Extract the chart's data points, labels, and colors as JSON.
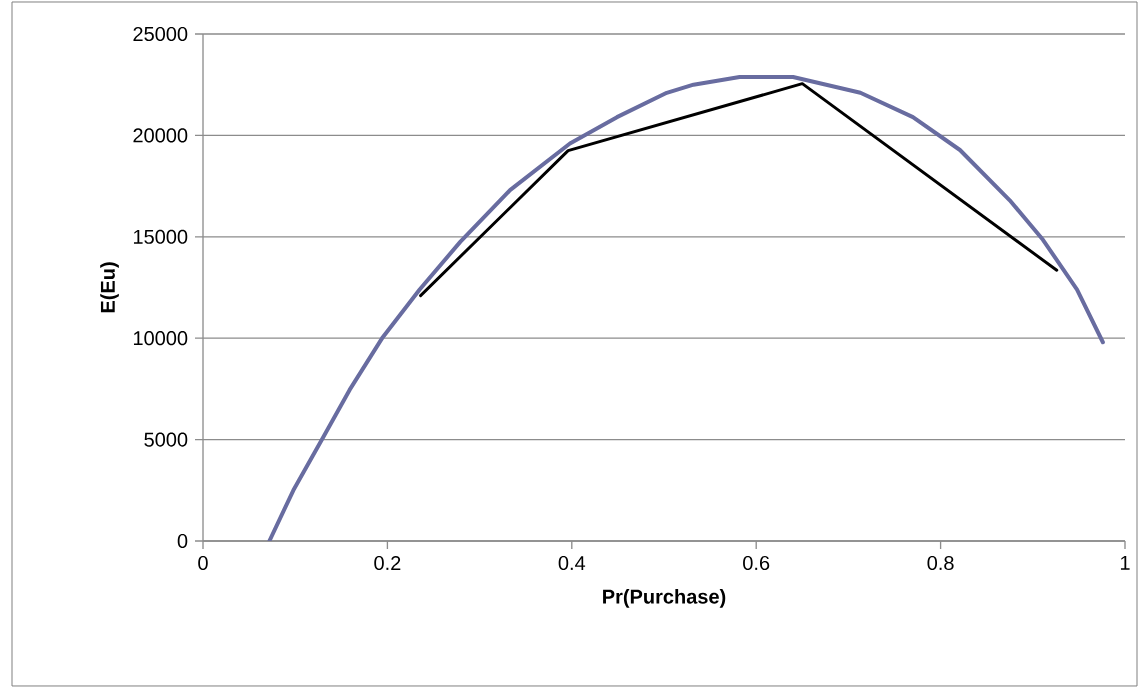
{
  "chart_data": {
    "type": "line",
    "xlabel": "Pr(Purchase)",
    "ylabel": "E(Eu)",
    "xlim": [
      0,
      1
    ],
    "ylim": [
      0,
      25000
    ],
    "xticks": [
      0,
      0.2,
      0.4,
      0.6,
      0.8,
      1
    ],
    "yticks": [
      0,
      5000,
      10000,
      15000,
      20000,
      25000
    ],
    "grid": "y",
    "marker": "none",
    "series": [
      {
        "color": "#686ca0",
        "x": [
          0.072,
          0.098,
          0.129,
          0.159,
          0.195,
          0.235,
          0.279,
          0.333,
          0.398,
          0.449,
          0.503,
          0.532,
          0.582,
          0.64,
          0.713,
          0.77,
          0.821,
          0.875,
          0.911,
          0.948,
          0.976
        ],
        "values": [
          0,
          2500,
          5000,
          7450,
          10050,
          12400,
          14750,
          17300,
          19600,
          20900,
          22100,
          22500,
          22880,
          22880,
          22100,
          20900,
          19280,
          16800,
          14850,
          12400,
          9800
        ]
      },
      {
        "color": "#000000",
        "x": [
          0.236,
          0.396,
          0.65,
          0.926
        ],
        "values": [
          12100,
          19250,
          22550,
          13350
        ]
      }
    ]
  }
}
